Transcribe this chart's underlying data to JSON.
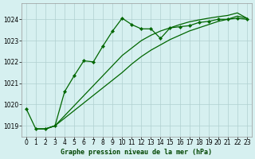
{
  "title": "Graphe pression niveau de la mer (hPa)",
  "background_color": "#d6f0f0",
  "plot_bg_color": "#d6f0f0",
  "grid_color": "#b0d0d0",
  "line_color": "#006600",
  "marker_color": "#006600",
  "xlim": [
    -0.5,
    23.5
  ],
  "ylim": [
    1018.5,
    1024.75
  ],
  "yticks": [
    1019,
    1020,
    1021,
    1022,
    1023,
    1024
  ],
  "xticks": [
    0,
    1,
    2,
    3,
    4,
    5,
    6,
    7,
    8,
    9,
    10,
    11,
    12,
    13,
    14,
    15,
    16,
    17,
    18,
    19,
    20,
    21,
    22,
    23
  ],
  "series1_x": [
    0,
    1,
    2,
    3,
    4,
    5,
    6,
    7,
    8,
    9,
    10,
    11,
    12,
    13,
    14,
    15,
    16,
    17,
    18,
    19,
    20,
    21,
    22,
    23
  ],
  "series1_y": [
    1019.8,
    1018.85,
    1018.85,
    1019.0,
    1020.6,
    1021.35,
    1022.05,
    1022.0,
    1022.75,
    1023.45,
    1024.05,
    1023.75,
    1023.55,
    1023.55,
    1023.1,
    1023.6,
    1023.65,
    1023.7,
    1023.85,
    1023.9,
    1024.0,
    1024.0,
    1024.05,
    1024.0
  ],
  "series2_x": [
    1,
    2,
    3,
    10,
    11,
    12,
    13,
    14,
    15,
    16,
    17,
    18,
    19,
    20,
    21,
    22,
    23
  ],
  "series2_y": [
    1018.85,
    1018.85,
    1019.0,
    1022.3,
    1022.65,
    1023.0,
    1023.25,
    1023.45,
    1023.6,
    1023.75,
    1023.88,
    1023.97,
    1024.05,
    1024.12,
    1024.18,
    1024.3,
    1024.05
  ],
  "series3_x": [
    1,
    2,
    3,
    10,
    11,
    12,
    13,
    14,
    15,
    16,
    17,
    18,
    19,
    20,
    21,
    22,
    23
  ],
  "series3_y": [
    1018.85,
    1018.85,
    1019.0,
    1021.5,
    1021.9,
    1022.25,
    1022.55,
    1022.8,
    1023.05,
    1023.25,
    1023.45,
    1023.6,
    1023.75,
    1023.9,
    1024.0,
    1024.15,
    1024.05
  ],
  "xlabel_color": "#004400",
  "xlabel_fontsize": 6.0,
  "tick_fontsize": 5.5,
  "linewidth": 0.9,
  "markersize": 2.2
}
